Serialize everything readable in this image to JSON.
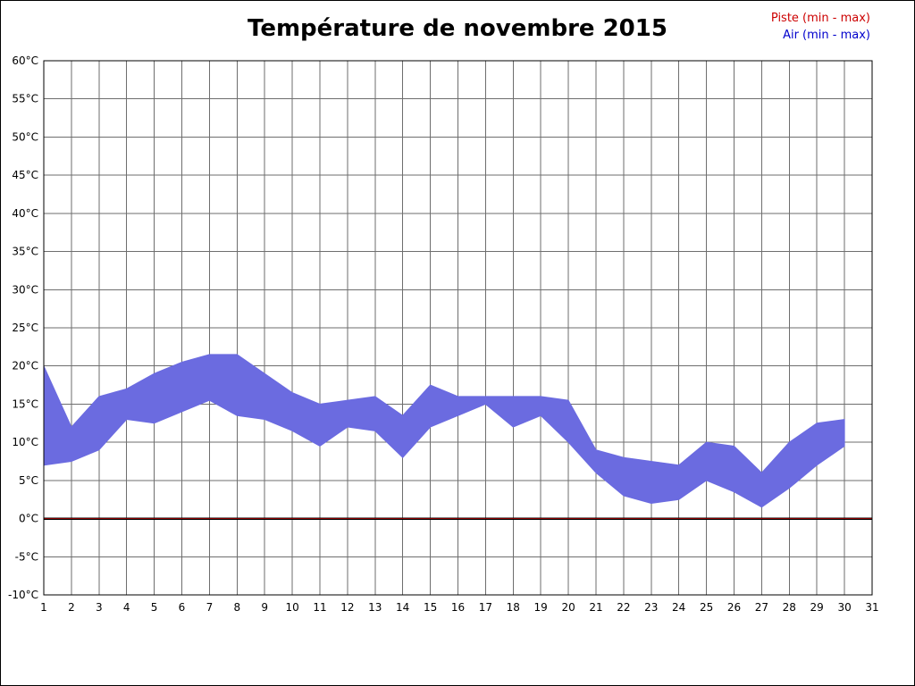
{
  "title": "Température de novembre 2015",
  "legend": [
    {
      "label": "Piste (min - max)",
      "color": "#cc0000"
    },
    {
      "label": "Air (min - max)",
      "color": "#0000cc"
    }
  ],
  "chart_data": {
    "type": "area",
    "subtype": "min-max-band",
    "title": "Température de novembre 2015",
    "xlabel": "",
    "ylabel": "",
    "xlim": [
      1,
      31
    ],
    "ylim": [
      -10,
      60
    ],
    "grid": true,
    "legend_position": "top-right",
    "band_color": "#6b6be0",
    "grid_color": "#6e6e6e",
    "border_color": "#000000",
    "zero_line_color": "#000000",
    "piste_line_color": "#8b0000",
    "x": [
      1,
      2,
      3,
      4,
      5,
      6,
      7,
      8,
      9,
      10,
      11,
      12,
      13,
      14,
      15,
      16,
      17,
      18,
      19,
      20,
      21,
      22,
      23,
      24,
      25,
      26,
      27,
      28,
      29,
      30
    ],
    "series": [
      {
        "name": "Air min",
        "values": [
          7,
          7.5,
          9,
          13,
          12.5,
          14,
          15.5,
          13.5,
          13,
          11.5,
          9.5,
          12,
          11.5,
          8,
          12,
          13.5,
          15,
          12,
          13.5,
          10,
          6,
          3,
          2,
          2.5,
          5,
          3.5,
          1.5,
          4,
          7,
          9.5
        ]
      },
      {
        "name": "Air max",
        "values": [
          20,
          12,
          16,
          17,
          19,
          20.5,
          21.5,
          21.5,
          19,
          16.5,
          15,
          15.5,
          16,
          13.5,
          17.5,
          16,
          16,
          16,
          16,
          15.5,
          9,
          8,
          7.5,
          7,
          10,
          9.5,
          6,
          10,
          12.5,
          13
        ]
      },
      {
        "name": "Piste min",
        "values": [
          0,
          0,
          0,
          0,
          0,
          0,
          0,
          0,
          0,
          0,
          0,
          0,
          0,
          0,
          0,
          0,
          0,
          0,
          0,
          0,
          0,
          0,
          0,
          0,
          0,
          0,
          0,
          0,
          0,
          0
        ]
      },
      {
        "name": "Piste max",
        "values": [
          0,
          0,
          0,
          0,
          0,
          0,
          0,
          0,
          0,
          0,
          0,
          0,
          0,
          0,
          0,
          0,
          0,
          0,
          0,
          0,
          0,
          0,
          0,
          0,
          0,
          0,
          0,
          0,
          0,
          0
        ]
      }
    ],
    "y_ticks": [
      {
        "v": 60,
        "label": "60°C"
      },
      {
        "v": 55,
        "label": "55°C"
      },
      {
        "v": 50,
        "label": "50°C"
      },
      {
        "v": 45,
        "label": "45°C"
      },
      {
        "v": 40,
        "label": "40°C"
      },
      {
        "v": 35,
        "label": "35°C"
      },
      {
        "v": 30,
        "label": "30°C"
      },
      {
        "v": 25,
        "label": "25°C"
      },
      {
        "v": 20,
        "label": "20°C"
      },
      {
        "v": 15,
        "label": "15°C"
      },
      {
        "v": 10,
        "label": "10°C"
      },
      {
        "v": 5,
        "label": "5°C"
      },
      {
        "v": 0,
        "label": "0°C"
      },
      {
        "v": -5,
        "label": "-5°C"
      },
      {
        "v": -10,
        "label": "-10°C"
      }
    ],
    "x_tick_labels": [
      "1",
      "2",
      "3",
      "4",
      "5",
      "6",
      "7",
      "8",
      "9",
      "10",
      "11",
      "12",
      "13",
      "14",
      "15",
      "16",
      "17",
      "18",
      "19",
      "20",
      "21",
      "22",
      "23",
      "24",
      "25",
      "26",
      "27",
      "28",
      "29",
      "30",
      "31"
    ]
  }
}
